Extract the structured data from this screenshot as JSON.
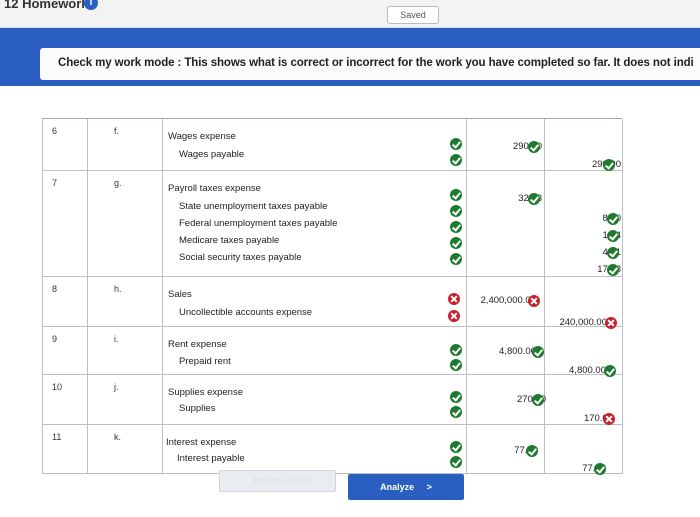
{
  "header": {
    "title": "12 Homework",
    "saved": "Saved"
  },
  "banner": {
    "text": "Check my work mode : This shows what is correct or incorrect for the work you have completed so far. It does not indi"
  },
  "entries": [
    {
      "no": "6",
      "date": "f.",
      "debit_acct": "Wages expense",
      "debit_amt": "290.00",
      "credits": [
        {
          "acct": "Wages payable",
          "amt": "290.00",
          "ok": true
        }
      ]
    },
    {
      "no": "7",
      "date": "g.",
      "debit_acct": "Payroll taxes expense",
      "debit_amt": "32.63",
      "credits": [
        {
          "acct": "State unemployment taxes payable",
          "amt": "8.70",
          "ok": true
        },
        {
          "acct": "Federal unemployment taxes payable",
          "amt": "1.74",
          "ok": true
        },
        {
          "acct": "Medicare taxes payable",
          "amt": "4.21",
          "ok": true
        },
        {
          "acct": "Social security taxes payable",
          "amt": "17.98",
          "ok": true
        }
      ]
    },
    {
      "no": "8",
      "date": "h.",
      "debit_acct": "Sales",
      "debit_amt": "2,400,000.00",
      "debit_ok": false,
      "credits": [
        {
          "acct": "Uncollectible accounts expense",
          "amt": "240,000.00",
          "ok": false
        }
      ]
    },
    {
      "no": "9",
      "date": "i.",
      "debit_acct": "Rent expense",
      "debit_amt": "4,800.00",
      "credits": [
        {
          "acct": "Prepaid rent",
          "amt": "4,800.00",
          "ok": true
        }
      ]
    },
    {
      "no": "10",
      "date": "j.",
      "debit_acct": "Supplies expense",
      "debit_amt": "270.00",
      "credits": [
        {
          "acct": "Supplies",
          "amt": "170.00",
          "ok": false
        }
      ]
    },
    {
      "no": "11",
      "date": "k.",
      "debit_acct": "Interest expense",
      "debit_amt": "77.00",
      "credits": [
        {
          "acct": "Interest payable",
          "amt": "77.00",
          "ok": true
        }
      ]
    }
  ],
  "buttons": {
    "general_journal": "General Journal",
    "analyze": "Analyze",
    "prev_icon": "<",
    "next_icon": ">"
  },
  "colors": {
    "accent": "#2a5fc1",
    "correct": "#1f7a2e",
    "incorrect": "#c8212b"
  }
}
